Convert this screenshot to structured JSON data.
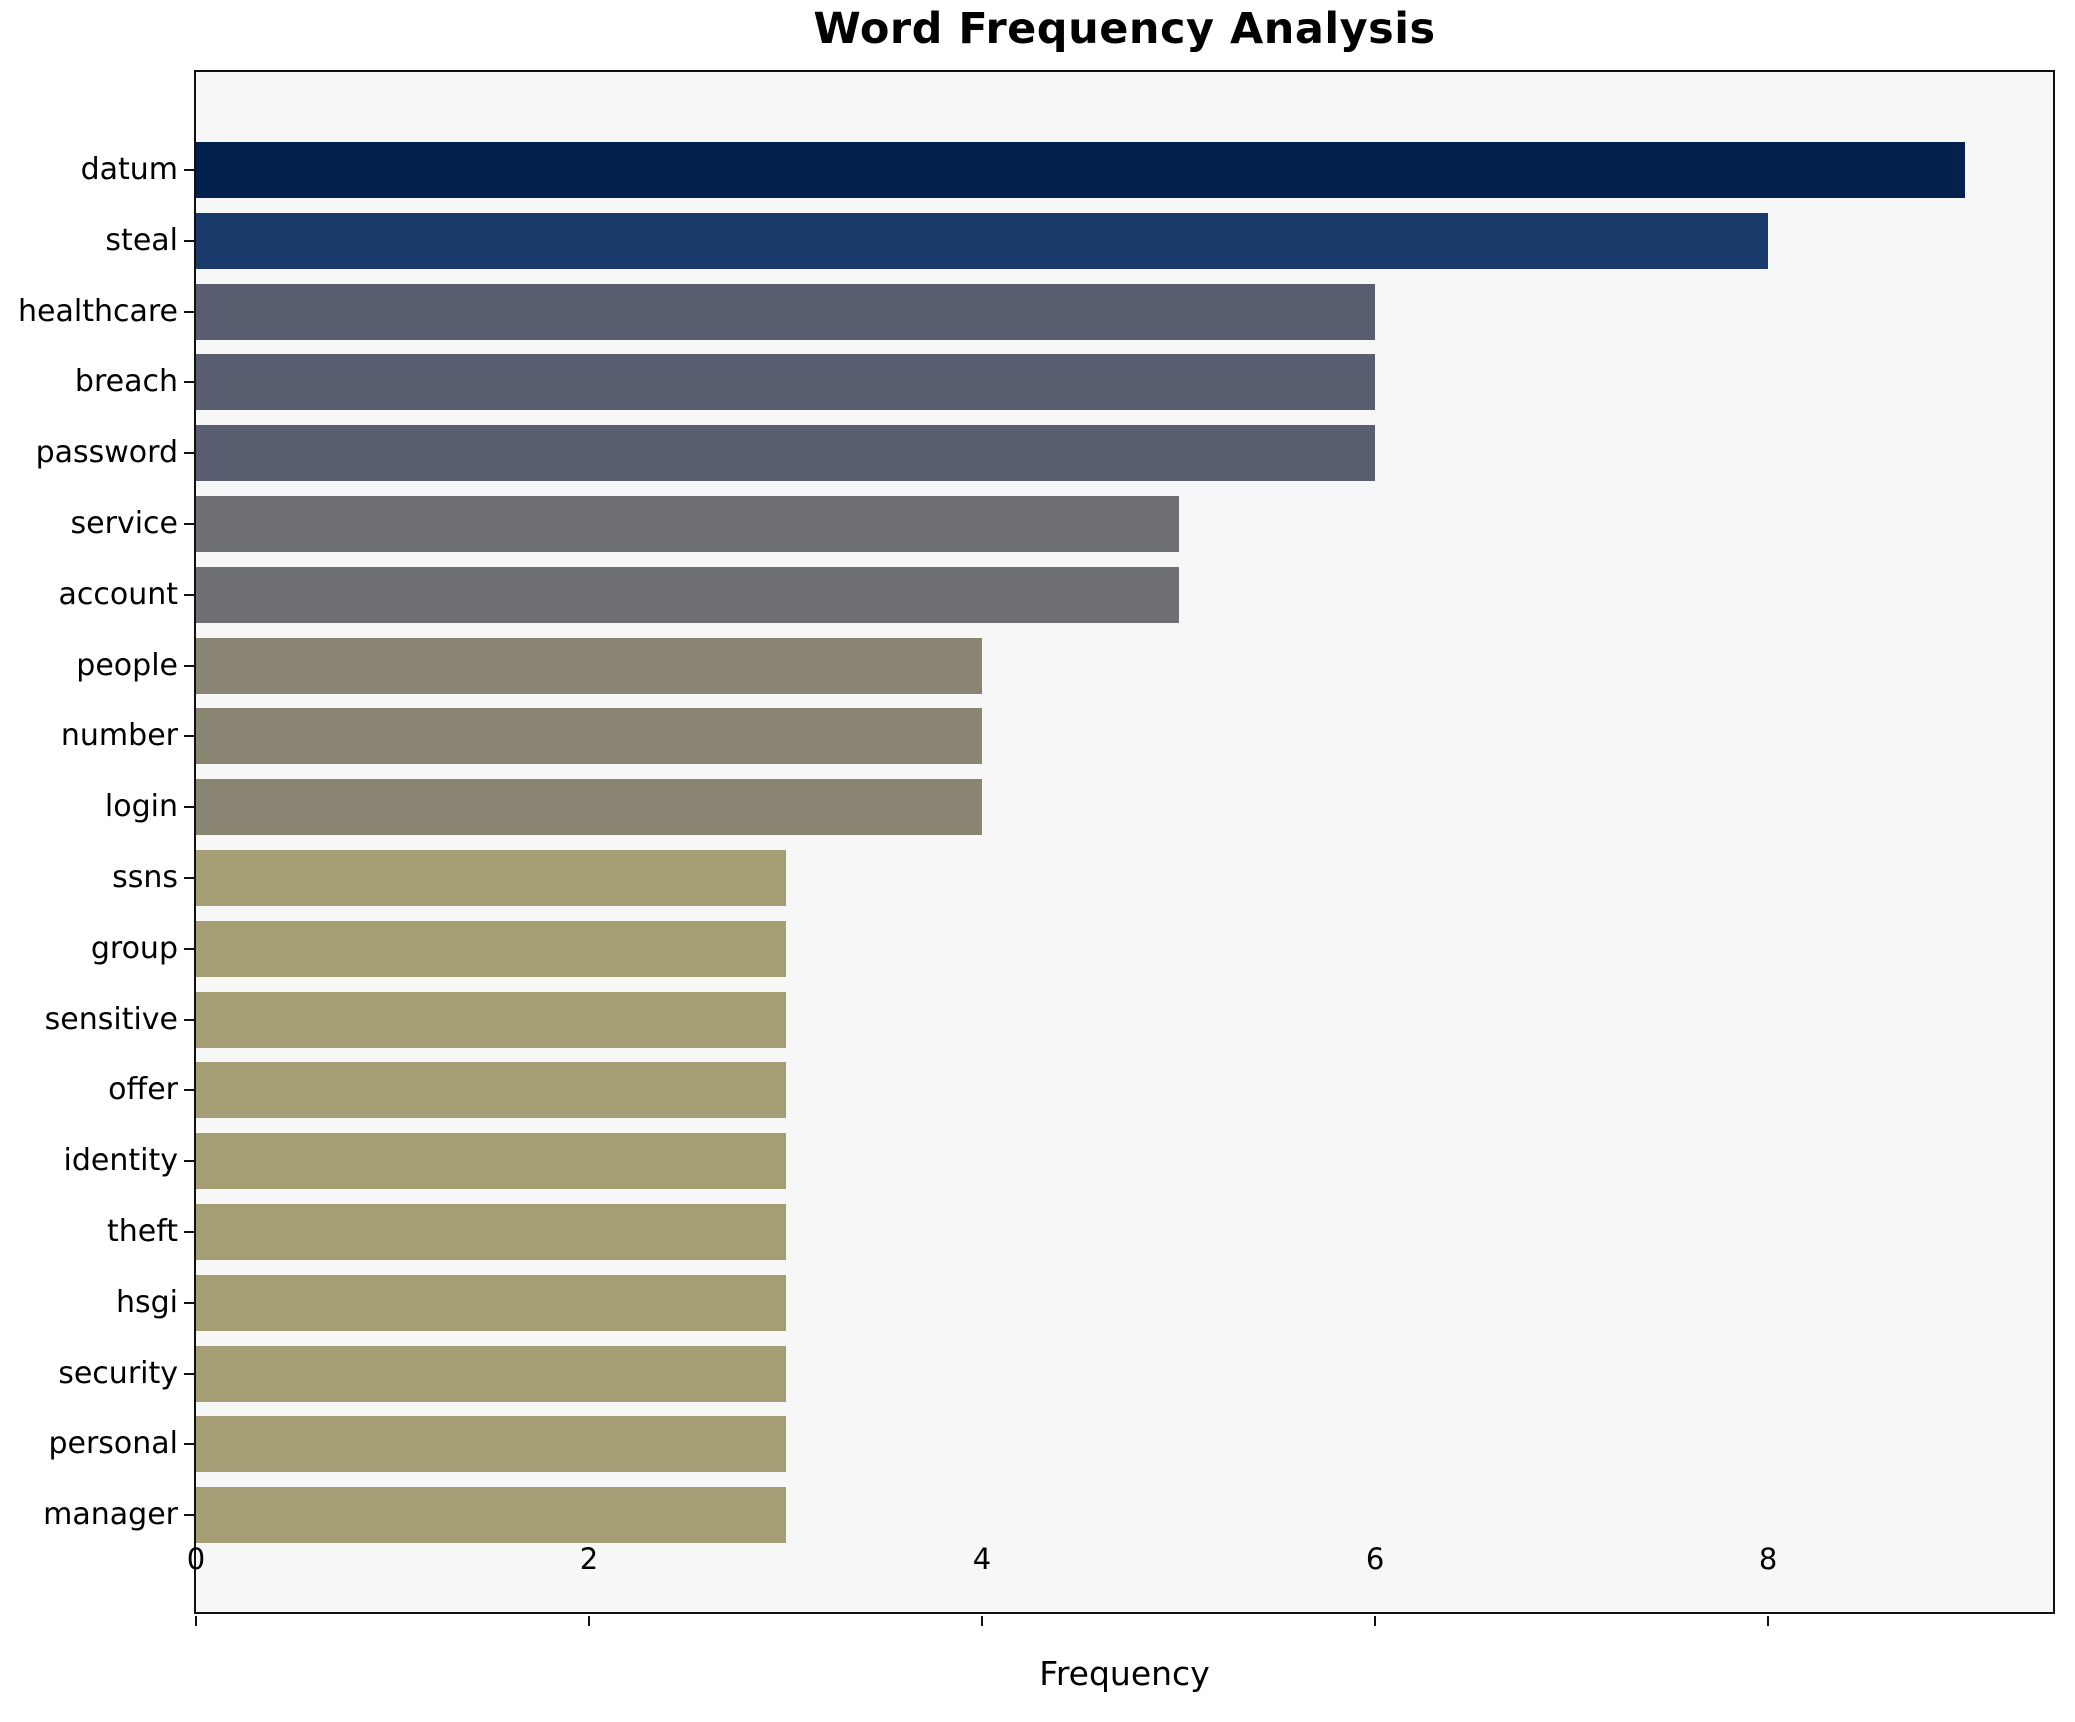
{
  "figure": {
    "background": "#ffffff",
    "plot_background": "#f7f7f7",
    "frame_color": "#111111",
    "text_color": "#000000"
  },
  "chart_data": {
    "type": "bar",
    "orientation": "horizontal",
    "title": "Word Frequency Analysis",
    "xlabel": "Frequency",
    "ylabel": "",
    "categories": [
      "datum",
      "steal",
      "healthcare",
      "breach",
      "password",
      "service",
      "account",
      "people",
      "number",
      "login",
      "ssns",
      "group",
      "sensitive",
      "offer",
      "identity",
      "theft",
      "hsgi",
      "security",
      "personal",
      "manager"
    ],
    "values": [
      9,
      8,
      6,
      6,
      6,
      5,
      5,
      4,
      4,
      4,
      3,
      3,
      3,
      3,
      3,
      3,
      3,
      3,
      3,
      3
    ],
    "bar_colors": [
      "#03214d",
      "#1a3a6c",
      "#585e6f",
      "#585e6f",
      "#585e6f",
      "#6f7074",
      "#6f7074",
      "#8a8572",
      "#8a8572",
      "#8a8572",
      "#a59d74",
      "#a59d74",
      "#a59d74",
      "#a59d74",
      "#a59d74",
      "#a59d74",
      "#a59d74",
      "#a59d74",
      "#a59d74",
      "#a59d74"
    ],
    "xlim": [
      0,
      9.45
    ],
    "xticks": [
      0,
      2,
      4,
      6,
      8
    ],
    "grid": false,
    "legend": null
  }
}
